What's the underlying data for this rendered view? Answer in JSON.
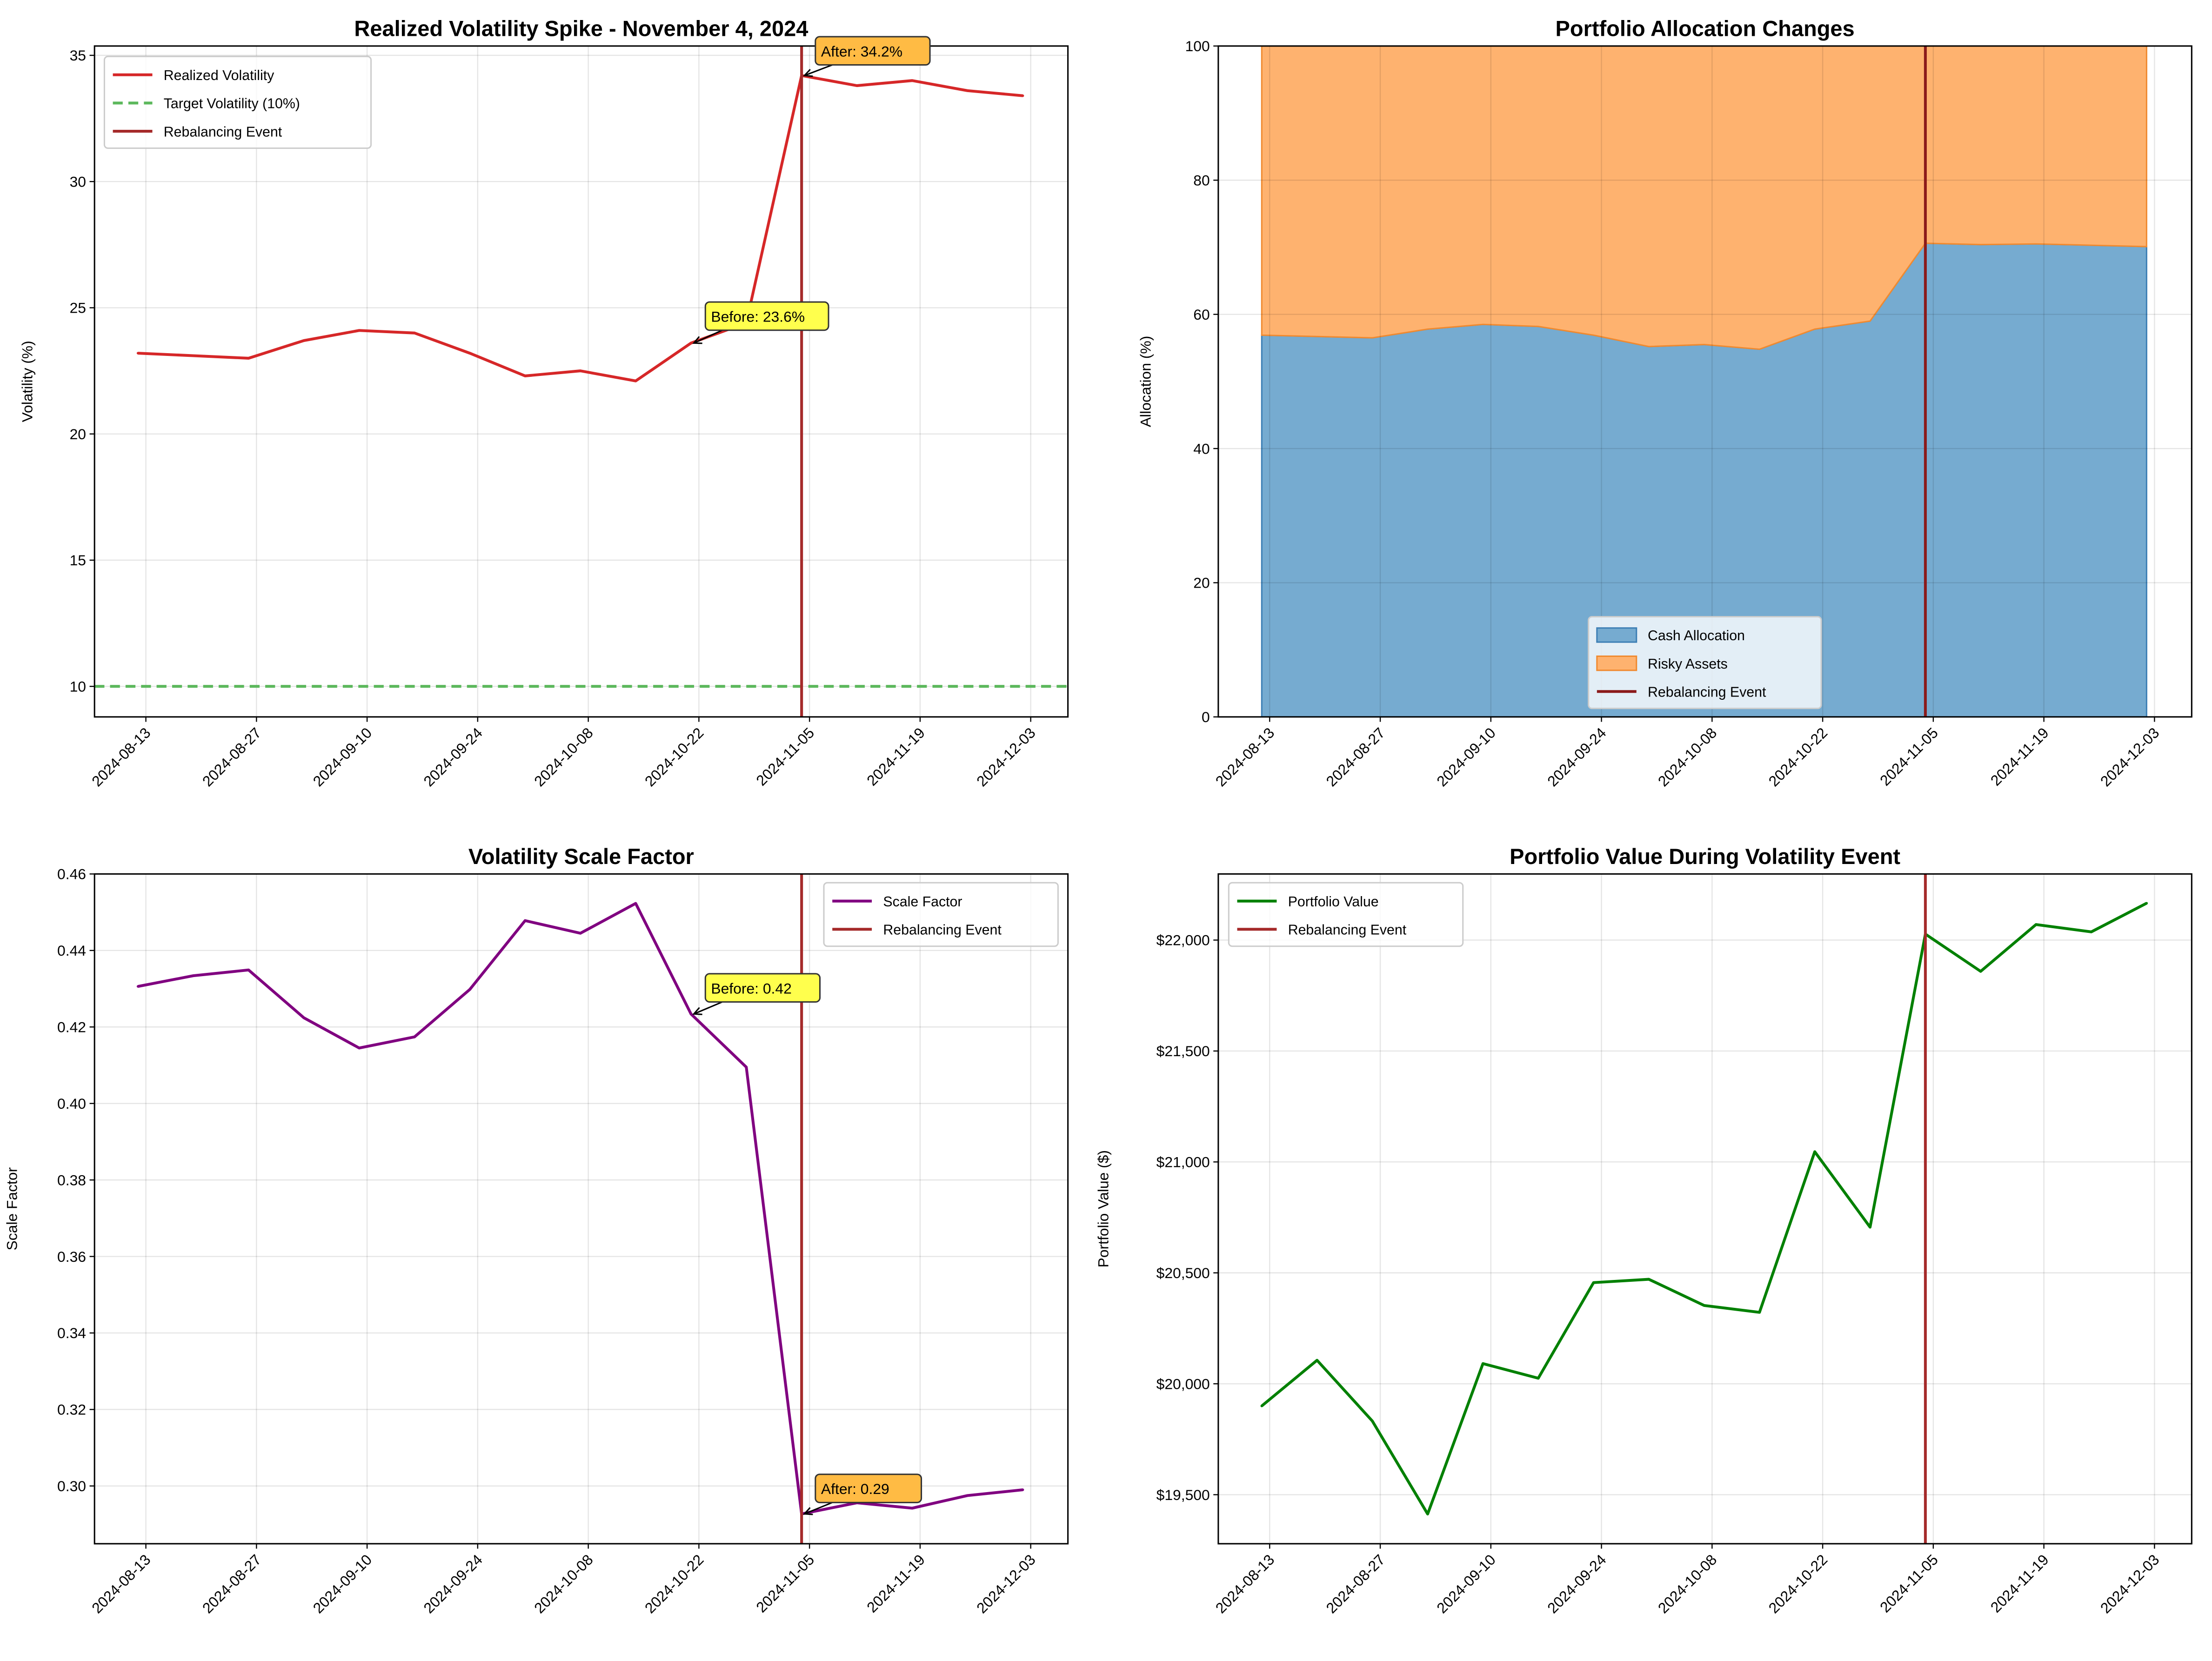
{
  "chart_data": [
    {
      "type": "line",
      "title": "Realized Volatility Spike - November 4, 2024",
      "xlabel": "",
      "ylabel": "Volatility (%)",
      "xlim": [
        "2024-08-06T12:00Z",
        "2024-12-07T17:00Z"
      ],
      "ylim": [
        8.79,
        35.37
      ],
      "yticks": [
        10,
        15,
        20,
        25,
        30,
        35
      ],
      "ytick_labels": [
        "10",
        "15",
        "20",
        "25",
        "30",
        "35"
      ],
      "xticks": [
        "2024-08-13",
        "2024-08-27",
        "2024-09-10",
        "2024-09-24",
        "2024-10-08",
        "2024-10-22",
        "2024-11-05",
        "2024-11-19",
        "2024-12-03"
      ],
      "grid": true,
      "x": [
        "2024-08-12",
        "2024-08-19",
        "2024-08-26",
        "2024-09-02",
        "2024-09-09",
        "2024-09-16",
        "2024-09-23",
        "2024-09-30",
        "2024-10-07",
        "2024-10-14",
        "2024-10-21",
        "2024-10-28",
        "2024-11-04",
        "2024-11-11",
        "2024-11-18",
        "2024-11-25",
        "2024-12-02"
      ],
      "series": [
        {
          "name": "Realized Volatility",
          "kind": "line",
          "color": "#d62728",
          "values": [
            23.2,
            23.1,
            23.0,
            23.7,
            24.1,
            24.0,
            23.2,
            22.3,
            22.5,
            22.1,
            23.6,
            24.4,
            34.2,
            33.8,
            34.0,
            33.6,
            33.4
          ]
        }
      ],
      "hlines": [
        {
          "name": "Target Volatility (10%)",
          "y": 10,
          "color": "#5cb85c",
          "dashed": true
        }
      ],
      "vline": {
        "name": "Rebalancing Event",
        "x": "2024-11-04",
        "color": "#a52a2a"
      },
      "legend": {
        "placement": "upper-left",
        "entries": [
          "Realized Volatility",
          "Target Volatility (10%)",
          "Rebalancing Event"
        ]
      },
      "annotations": [
        {
          "text": "Before: 23.6%",
          "x": "2024-10-21",
          "y": 23.6,
          "color": "#ffff4d"
        },
        {
          "text": "After: 34.2%",
          "x": "2024-11-04",
          "y": 34.2,
          "color": "#ffbb44"
        }
      ]
    },
    {
      "type": "area",
      "title": "Portfolio Allocation Changes",
      "xlabel": "",
      "ylabel": "Allocation (%)",
      "xlim": [
        "2024-08-06T12:00Z",
        "2024-12-07T17:00Z"
      ],
      "ylim": [
        0,
        100
      ],
      "yticks": [
        0,
        20,
        40,
        60,
        80,
        100
      ],
      "ytick_labels": [
        "0",
        "20",
        "40",
        "60",
        "80",
        "100"
      ],
      "xticks": [
        "2024-08-13",
        "2024-08-27",
        "2024-09-10",
        "2024-09-24",
        "2024-10-08",
        "2024-10-22",
        "2024-11-05",
        "2024-11-19",
        "2024-12-03"
      ],
      "grid": true,
      "stacked": true,
      "x": [
        "2024-08-12",
        "2024-08-19",
        "2024-08-26",
        "2024-09-02",
        "2024-09-09",
        "2024-09-16",
        "2024-09-23",
        "2024-09-30",
        "2024-10-07",
        "2024-10-14",
        "2024-10-21",
        "2024-10-28",
        "2024-11-04",
        "2024-11-11",
        "2024-11-18",
        "2024-11-25",
        "2024-12-02"
      ],
      "series": [
        {
          "name": "Cash Allocation",
          "kind": "area",
          "color": "#76abd0",
          "edge": "#3d7fb5",
          "values": [
            56.9,
            56.7,
            56.5,
            57.8,
            58.5,
            58.2,
            56.9,
            55.2,
            55.5,
            54.8,
            57.8,
            59.0,
            70.6,
            70.4,
            70.5,
            70.3,
            70.1
          ]
        },
        {
          "name": "Risky Assets",
          "kind": "area",
          "color": "#feb26f",
          "edge": "#f08a30",
          "values": [
            43.1,
            43.3,
            43.5,
            42.2,
            41.5,
            41.8,
            43.1,
            44.8,
            44.5,
            45.2,
            42.2,
            41.0,
            29.4,
            29.6,
            29.5,
            29.7,
            29.9
          ]
        }
      ],
      "vline": {
        "name": "Rebalancing Event",
        "x": "2024-11-04",
        "color": "#8b1a1a"
      },
      "legend": {
        "placement": "lower-center",
        "entries": [
          "Cash Allocation",
          "Risky Assets",
          "Rebalancing Event"
        ]
      }
    },
    {
      "type": "line",
      "title": "Volatility Scale Factor",
      "xlabel": "",
      "ylabel": "Scale Factor",
      "xlim": [
        "2024-08-06T12:00Z",
        "2024-12-07T17:00Z"
      ],
      "ylim": [
        0.2849,
        0.46
      ],
      "yticks": [
        0.3,
        0.32,
        0.34,
        0.36,
        0.38,
        0.4,
        0.42,
        0.44,
        0.46
      ],
      "ytick_labels": [
        "0.30",
        "0.32",
        "0.34",
        "0.36",
        "0.38",
        "0.40",
        "0.42",
        "0.44",
        "0.46"
      ],
      "xticks": [
        "2024-08-13",
        "2024-08-27",
        "2024-09-10",
        "2024-09-24",
        "2024-10-08",
        "2024-10-22",
        "2024-11-05",
        "2024-11-19",
        "2024-12-03"
      ],
      "grid": true,
      "x": [
        "2024-08-12",
        "2024-08-19",
        "2024-08-26",
        "2024-09-02",
        "2024-09-09",
        "2024-09-16",
        "2024-09-23",
        "2024-09-30",
        "2024-10-07",
        "2024-10-14",
        "2024-10-21",
        "2024-10-28",
        "2024-11-04",
        "2024-11-11",
        "2024-11-18",
        "2024-11-25",
        "2024-12-02"
      ],
      "series": [
        {
          "name": "Scale Factor",
          "kind": "line",
          "color": "#800080",
          "values": [
            0.4306,
            0.4334,
            0.4349,
            0.4224,
            0.4145,
            0.4174,
            0.4298,
            0.4478,
            0.4445,
            0.4523,
            0.4234,
            0.4095,
            0.2927,
            0.2956,
            0.2942,
            0.2975,
            0.299
          ]
        }
      ],
      "vline": {
        "name": "Rebalancing Event",
        "x": "2024-11-04",
        "color": "#a52a2a"
      },
      "legend": {
        "placement": "upper-right",
        "entries": [
          "Scale Factor",
          "Rebalancing Event"
        ]
      },
      "annotations": [
        {
          "text": "Before: 0.42",
          "x": "2024-10-21",
          "y": 0.4234,
          "color": "#ffff4d"
        },
        {
          "text": "After: 0.29",
          "x": "2024-11-04",
          "y": 0.2927,
          "color": "#ffbb44"
        }
      ]
    },
    {
      "type": "line",
      "title": "Portfolio Value During Volatility Event",
      "xlabel": "",
      "ylabel": "Portfolio Value ($)",
      "xlim": [
        "2024-08-06T12:00Z",
        "2024-12-07T17:00Z"
      ],
      "ylim": [
        19279,
        22298
      ],
      "yticks": [
        19500,
        20000,
        20500,
        21000,
        21500,
        22000
      ],
      "ytick_labels": [
        "$19,500",
        "$20,000",
        "$20,500",
        "$21,000",
        "$21,500",
        "$22,000"
      ],
      "xticks": [
        "2024-08-13",
        "2024-08-27",
        "2024-09-10",
        "2024-09-24",
        "2024-10-08",
        "2024-10-22",
        "2024-11-05",
        "2024-11-19",
        "2024-12-03"
      ],
      "grid": true,
      "x": [
        "2024-08-12",
        "2024-08-19",
        "2024-08-26",
        "2024-09-02",
        "2024-09-09",
        "2024-09-16",
        "2024-09-23",
        "2024-09-30",
        "2024-10-07",
        "2024-10-14",
        "2024-10-21",
        "2024-10-28",
        "2024-11-04",
        "2024-11-11",
        "2024-11-18",
        "2024-11-25",
        "2024-12-02"
      ],
      "series": [
        {
          "name": "Portfolio Value",
          "kind": "line",
          "color": "#008000",
          "values": [
            19900,
            20106,
            19832,
            19413,
            20091,
            20025,
            20456,
            20471,
            20353,
            20322,
            21046,
            20706,
            22027,
            21859,
            22070,
            22037,
            22166
          ]
        }
      ],
      "vline": {
        "name": "Rebalancing Event",
        "x": "2024-11-04",
        "color": "#a52a2a"
      },
      "legend": {
        "placement": "upper-left",
        "entries": [
          "Portfolio Value",
          "Rebalancing Event"
        ]
      }
    }
  ]
}
